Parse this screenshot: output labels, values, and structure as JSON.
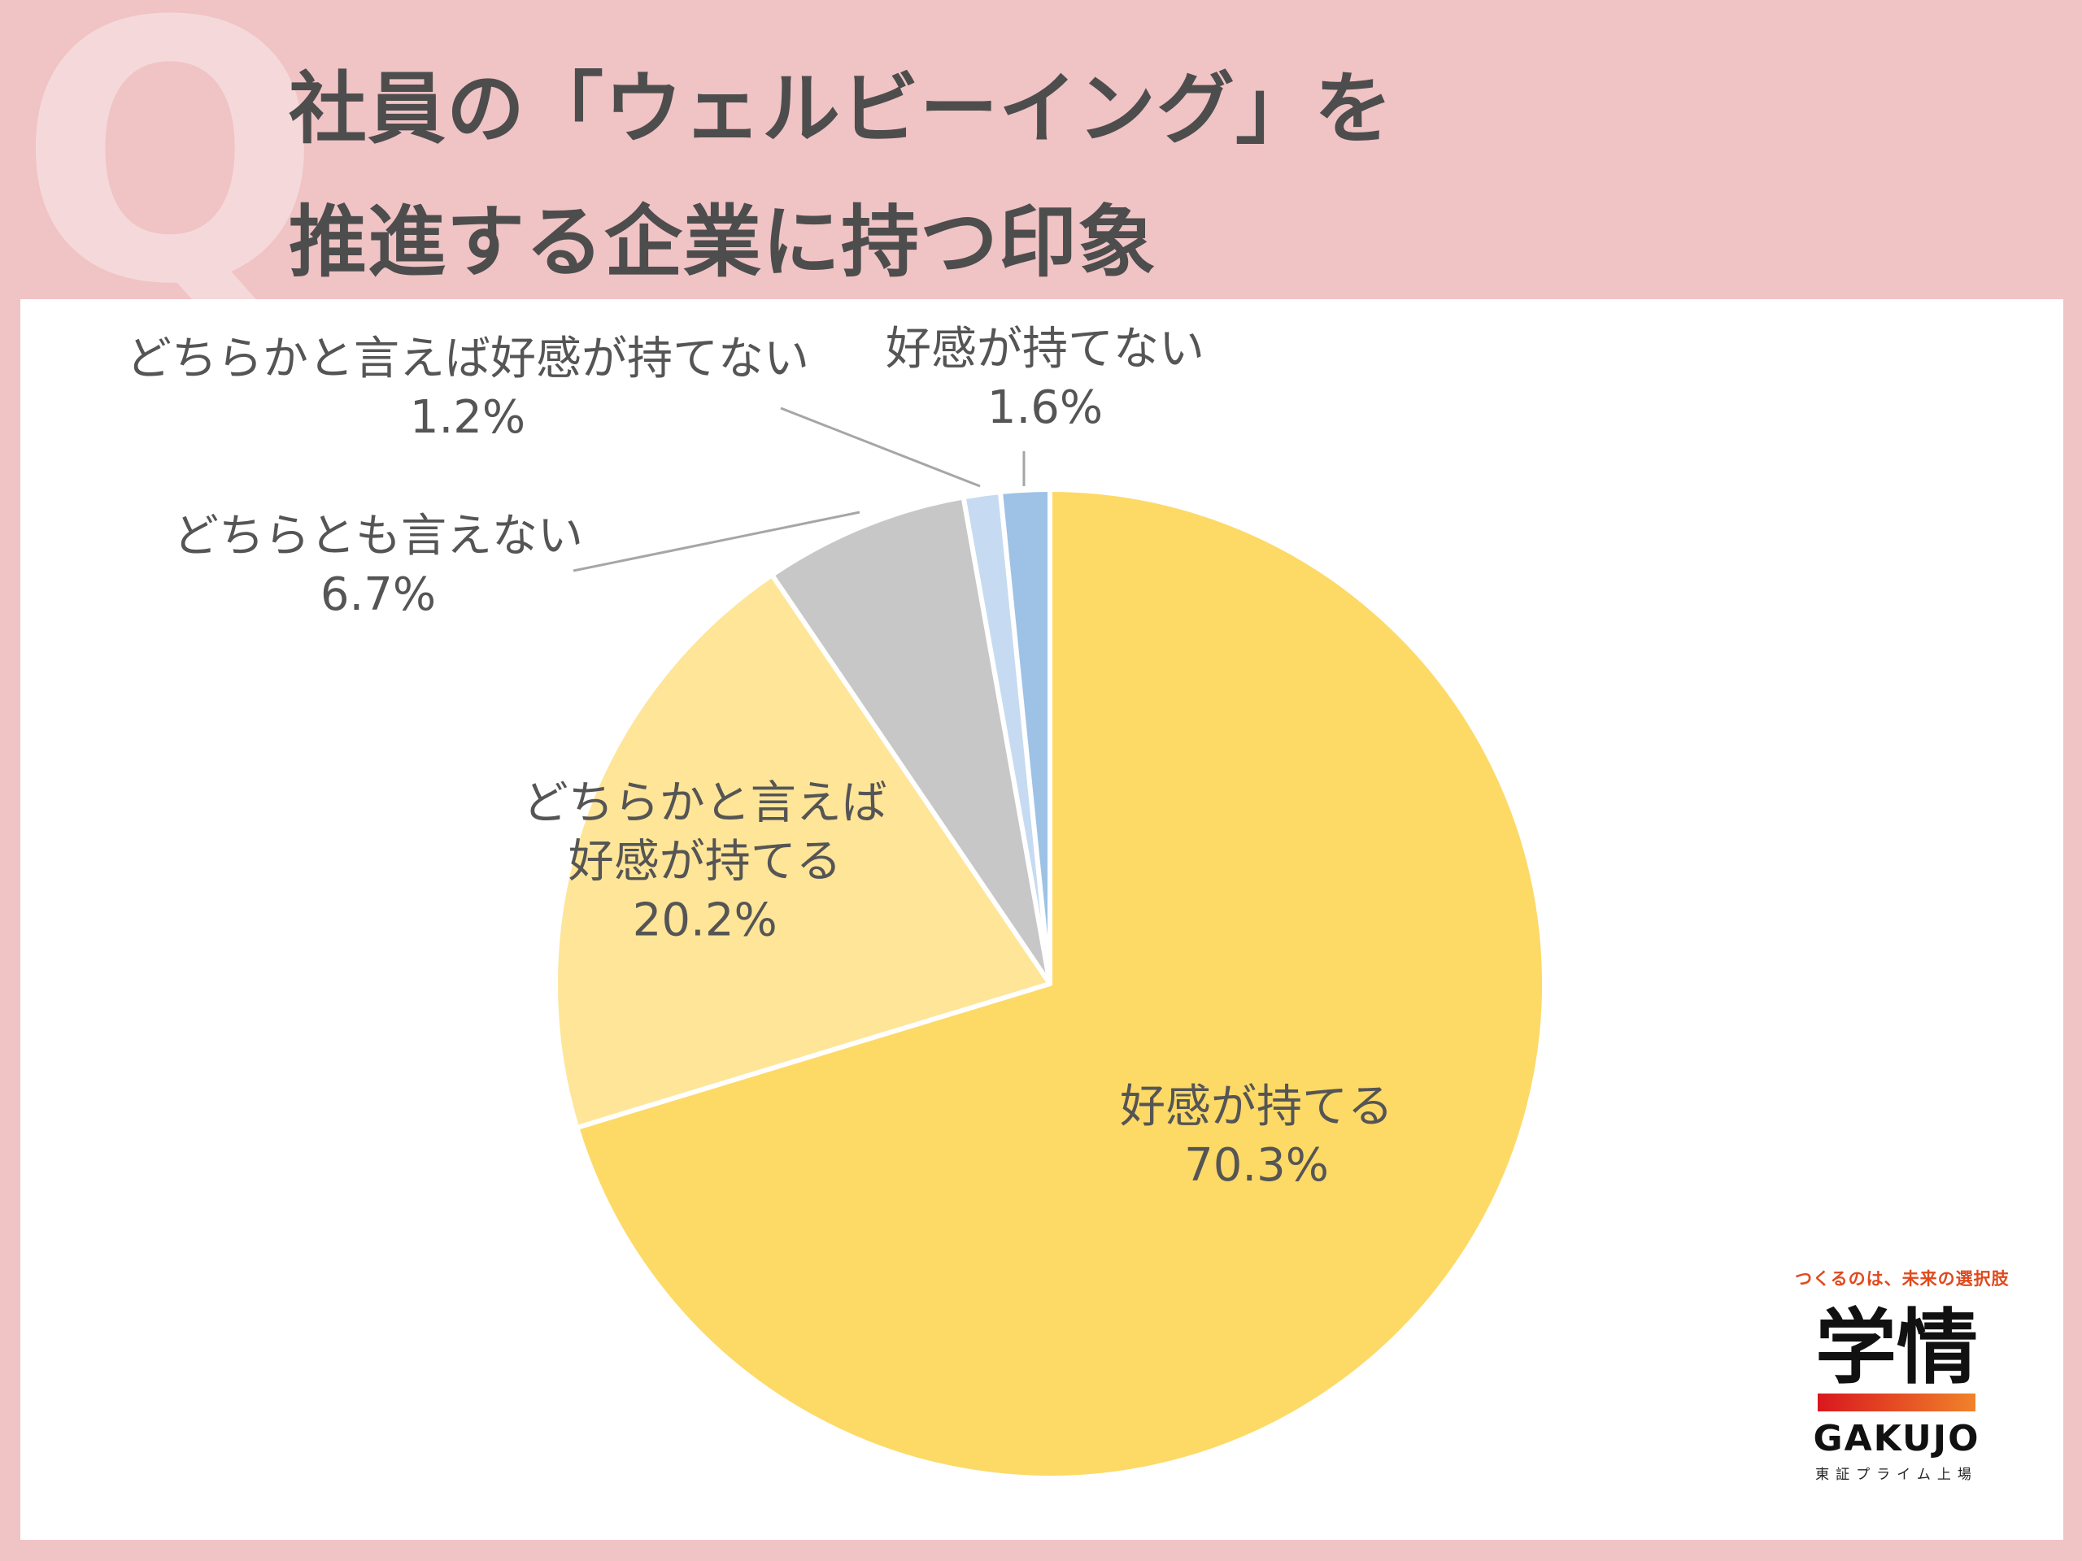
{
  "header": {
    "q_mark": "Q",
    "title_line1": "社員の「ウェルビーイング」を",
    "title_line2": "推進する企業に持つ印象"
  },
  "chart_data": {
    "type": "pie",
    "start_angle_deg": 0,
    "direction": "clockwise",
    "slices": [
      {
        "label_lines": [
          "好感が持てる"
        ],
        "value": 70.3,
        "value_label": "70.3%",
        "color": "#fdd966"
      },
      {
        "label_lines": [
          "どちらかと言えば",
          "好感が持てる"
        ],
        "value": 20.2,
        "value_label": "20.2%",
        "color": "#fee598"
      },
      {
        "label_lines": [
          "どちらとも言えない"
        ],
        "value": 6.7,
        "value_label": "6.7%",
        "color": "#c7c7c7"
      },
      {
        "label_lines": [
          "どちらかと言えば好感が持てない"
        ],
        "value": 1.2,
        "value_label": "1.2%",
        "color": "#c6dbf1"
      },
      {
        "label_lines": [
          "好感が持てない"
        ],
        "value": 1.6,
        "value_label": "1.6%",
        "color": "#9dc2e6"
      }
    ]
  },
  "brand": {
    "tagline": "つくるのは、未来の選択肢",
    "name_jp": "学情",
    "name_en": "GAKUJO",
    "listing": "東証プライム上場"
  }
}
